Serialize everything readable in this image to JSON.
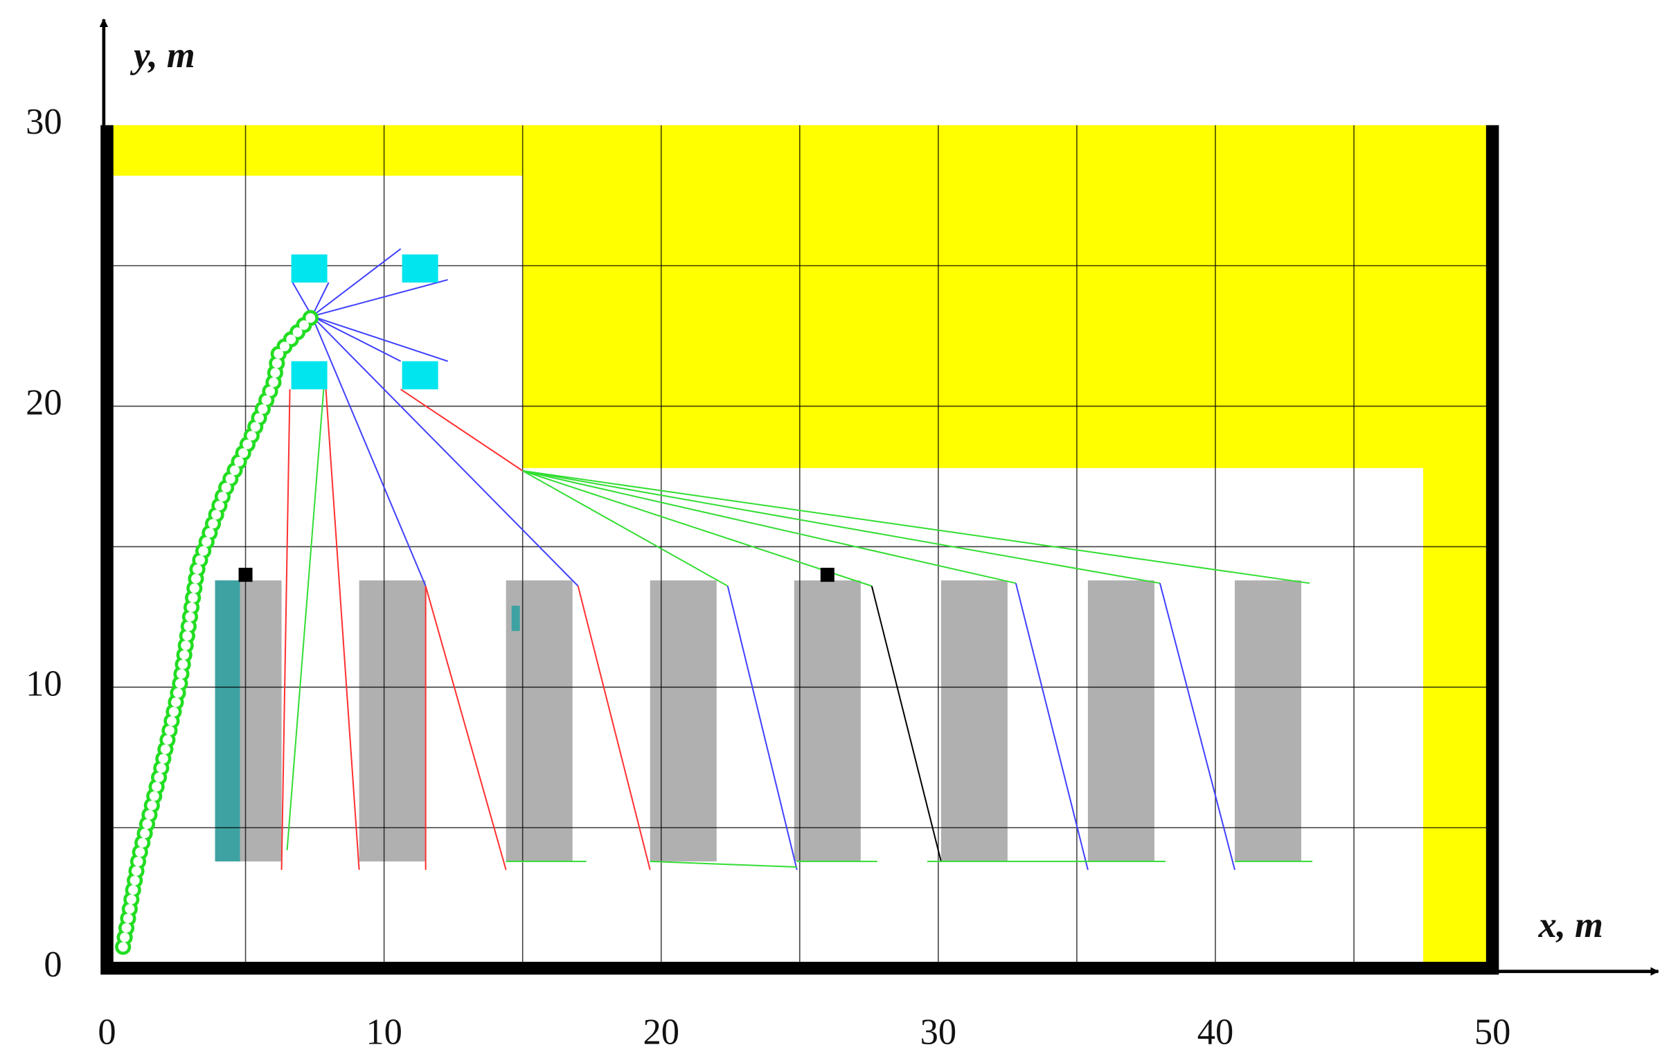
{
  "chart_data": {
    "type": "layout",
    "x_label": "x, m",
    "y_label": "y, m",
    "xlim": [
      0,
      50
    ],
    "ylim": [
      0,
      30
    ],
    "xticks": [
      0,
      10,
      20,
      30,
      40,
      50
    ],
    "yticks": [
      0,
      10,
      20,
      30
    ],
    "grid_x": [
      5,
      10,
      15,
      20,
      25,
      30,
      35,
      40,
      45
    ],
    "grid_y": [
      5,
      10,
      15,
      20,
      25
    ],
    "obstacle": {
      "color": "#ffff00",
      "x": [
        0,
        50,
        50,
        47.5,
        47.5,
        15,
        15,
        0
      ],
      "y": [
        30,
        30,
        0,
        0,
        17.8,
        17.8,
        28.2,
        28.2
      ]
    },
    "racks": {
      "color": "#b0b0b0",
      "x0": [
        3.9,
        9.1,
        14.4,
        19.6,
        24.8,
        30.1,
        35.4,
        40.7
      ],
      "x1": [
        6.3,
        11.5,
        16.8,
        22.0,
        27.2,
        32.5,
        37.8,
        43.1
      ],
      "y0": 3.8,
      "y1": 13.8
    },
    "occupied": {
      "color": "#2aa0a0",
      "x0": [
        3.9,
        14.6
      ],
      "x1": [
        4.8,
        14.9
      ],
      "y0": [
        3.8,
        12.0
      ],
      "y1": [
        13.8,
        12.9
      ]
    },
    "stations": {
      "color": "#00e5ee",
      "x": [
        7.3,
        11.3,
        7.3,
        11.3
      ],
      "y": [
        24.9,
        24.9,
        21.1,
        21.1
      ],
      "w": 1.3,
      "h": 1.0
    },
    "markers": {
      "color": "#000000",
      "x": [
        5.0,
        26.0
      ],
      "y": [
        14.0,
        14.0
      ],
      "size": 0.5
    },
    "trajectory": {
      "color": "#22dd22",
      "x": [
        0.58,
        1.16,
        1.93,
        2.63,
        3.09,
        3.28,
        4.25,
        5.2,
        6.0,
        6.2,
        7.4
      ],
      "y": [
        0.76,
        4.0,
        7.0,
        10.1,
        13.1,
        14.3,
        17.0,
        18.9,
        20.8,
        21.9,
        23.2
      ]
    },
    "edges": [
      {
        "color": "#4040ff",
        "x": [
          7.4,
          6.7
        ],
        "y": [
          23.2,
          24.4
        ]
      },
      {
        "color": "#4040ff",
        "x": [
          7.4,
          8.0
        ],
        "y": [
          23.2,
          24.4
        ]
      },
      {
        "color": "#4040ff",
        "x": [
          7.4,
          10.6
        ],
        "y": [
          23.2,
          25.6
        ]
      },
      {
        "color": "#4040ff",
        "x": [
          7.4,
          12.3
        ],
        "y": [
          23.2,
          24.5
        ]
      },
      {
        "color": "#4040ff",
        "x": [
          7.4,
          10.6
        ],
        "y": [
          23.2,
          21.6
        ]
      },
      {
        "color": "#4040ff",
        "x": [
          7.4,
          12.3
        ],
        "y": [
          23.2,
          21.6
        ]
      },
      {
        "color": "#4040ff",
        "x": [
          7.4,
          11.5
        ],
        "y": [
          23.2,
          13.6
        ]
      },
      {
        "color": "#4040ff",
        "x": [
          7.4,
          17.0
        ],
        "y": [
          23.2,
          13.6
        ]
      },
      {
        "color": "#ff3030",
        "x": [
          10.6,
          15.0
        ],
        "y": [
          20.6,
          17.7
        ]
      },
      {
        "color": "#33dd33",
        "x": [
          15.0,
          22.4
        ],
        "y": [
          17.7,
          13.6
        ]
      },
      {
        "color": "#33dd33",
        "x": [
          15.0,
          27.6
        ],
        "y": [
          17.7,
          13.6
        ]
      },
      {
        "color": "#33dd33",
        "x": [
          15.0,
          32.8
        ],
        "y": [
          17.7,
          13.7
        ]
      },
      {
        "color": "#33dd33",
        "x": [
          15.0,
          38.0
        ],
        "y": [
          17.7,
          13.7
        ]
      },
      {
        "color": "#33dd33",
        "x": [
          15.0,
          43.4
        ],
        "y": [
          17.7,
          13.7
        ]
      },
      {
        "color": "#ff3030",
        "x": [
          6.6,
          6.3
        ],
        "y": [
          20.6,
          3.5
        ]
      },
      {
        "color": "#ff3030",
        "x": [
          7.9,
          9.1
        ],
        "y": [
          20.6,
          3.5
        ]
      },
      {
        "color": "#33dd33",
        "x": [
          7.9,
          6.5
        ],
        "y": [
          21.6,
          4.2
        ]
      },
      {
        "color": "#ff3030",
        "x": [
          11.5,
          11.5
        ],
        "y": [
          13.6,
          3.5
        ]
      },
      {
        "color": "#ff3030",
        "x": [
          11.5,
          14.4
        ],
        "y": [
          13.6,
          3.5
        ]
      },
      {
        "color": "#ff3030",
        "x": [
          17.0,
          19.6
        ],
        "y": [
          13.6,
          3.5
        ]
      },
      {
        "color": "#4040ff",
        "x": [
          22.4,
          24.9
        ],
        "y": [
          13.6,
          3.5
        ]
      },
      {
        "color": "#000000",
        "x": [
          27.6,
          30.1
        ],
        "y": [
          13.6,
          3.8
        ]
      },
      {
        "color": "#4040ff",
        "x": [
          32.8,
          35.4
        ],
        "y": [
          13.7,
          3.5
        ]
      },
      {
        "color": "#4040ff",
        "x": [
          38.0,
          40.7
        ],
        "y": [
          13.7,
          3.5
        ]
      },
      {
        "color": "#33dd33",
        "x": [
          14.4,
          17.3
        ],
        "y": [
          3.8,
          3.8
        ]
      },
      {
        "color": "#33dd33",
        "x": [
          19.6,
          24.9
        ],
        "y": [
          3.8,
          3.6
        ]
      },
      {
        "color": "#33dd33",
        "x": [
          24.9,
          27.8
        ],
        "y": [
          3.8,
          3.8
        ]
      },
      {
        "color": "#33dd33",
        "x": [
          29.6,
          35.4
        ],
        "y": [
          3.8,
          3.8
        ]
      },
      {
        "color": "#33dd33",
        "x": [
          35.4,
          38.2
        ],
        "y": [
          3.8,
          3.8
        ]
      },
      {
        "color": "#33dd33",
        "x": [
          40.7,
          43.5
        ],
        "y": [
          3.8,
          3.8
        ]
      }
    ]
  }
}
